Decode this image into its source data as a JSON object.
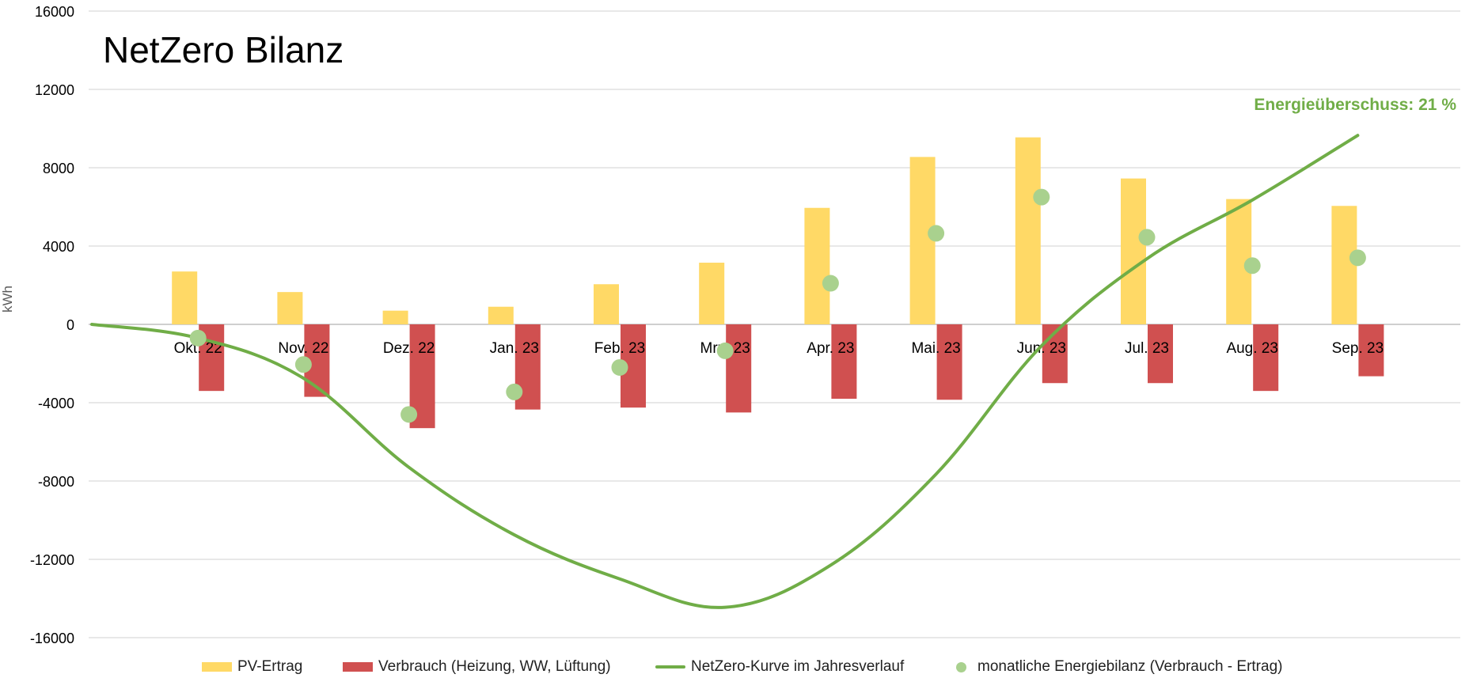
{
  "title": "NetZero Bilanz",
  "annotation": "Energieüberschuss: 21 %",
  "colors": {
    "pv": "#FFD966",
    "verbrauch": "#D05050",
    "line": "#70AD47",
    "dots": "#A9D18E",
    "grid": "#D9D9D9",
    "axis": "#BFBFBF"
  },
  "legend": [
    {
      "label": "PV-Ertrag",
      "kind": "bar",
      "color": "#FFD966"
    },
    {
      "label": "Verbrauch (Heizung, WW, Lüftung)",
      "kind": "bar",
      "color": "#D05050"
    },
    {
      "label": "NetZero-Kurve im Jahresverlauf",
      "kind": "line",
      "color": "#70AD47"
    },
    {
      "label": "monatliche Energiebilanz (Verbrauch - Ertrag)",
      "kind": "dot",
      "color": "#A9D18E"
    }
  ],
  "chart_data": {
    "type": "bar",
    "title": "NetZero Bilanz",
    "ylabel": "kWh",
    "xlabel": "",
    "ylim": [
      -16000,
      16000
    ],
    "yticks": [
      16000,
      12000,
      8000,
      4000,
      0,
      -4000,
      -8000,
      -12000,
      -16000
    ],
    "grid": true,
    "legend_position": "bottom",
    "categories": [
      "Okt. 22",
      "Nov. 22",
      "Dez. 22",
      "Jan. 23",
      "Feb. 23",
      "Mrz. 23",
      "Apr. 23",
      "Mai. 23",
      "Jun. 23",
      "Jul. 23",
      "Aug. 23",
      "Sep. 23"
    ],
    "series": [
      {
        "name": "PV-Ertrag",
        "type": "bar",
        "values": [
          2700,
          1650,
          700,
          900,
          2050,
          3150,
          5950,
          8550,
          9550,
          7450,
          6400,
          6050
        ]
      },
      {
        "name": "Verbrauch (Heizung, WW, Lüftung)",
        "type": "bar",
        "values": [
          -3400,
          -3700,
          -5300,
          -4350,
          -4250,
          -4500,
          -3800,
          -3850,
          -3000,
          -3000,
          -3400,
          -2650
        ]
      },
      {
        "name": "NetZero-Kurve im Jahresverlauf",
        "type": "line",
        "values": [
          -700,
          -2750,
          -7300,
          -10750,
          -13000,
          -14450,
          -12300,
          -7650,
          -1100,
          3350,
          6350,
          9650
        ]
      },
      {
        "name": "monatliche Energiebilanz (Verbrauch - Ertrag)",
        "type": "scatter",
        "values": [
          -700,
          -2050,
          -4600,
          -3450,
          -2200,
          -1350,
          2100,
          4650,
          6500,
          4450,
          3000,
          3400
        ]
      }
    ]
  }
}
